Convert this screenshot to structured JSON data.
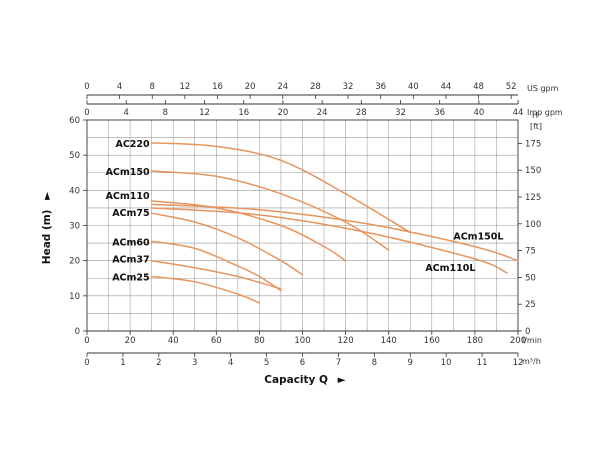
{
  "chart_data": {
    "type": "line",
    "title": "",
    "ylabel": "Head (m)",
    "ylabel_arrow": "►",
    "xlabel": "Capacity Q",
    "xlabel_arrow": "►",
    "xlim": [
      0,
      200
    ],
    "ylim": [
      0,
      60
    ],
    "grid": true,
    "line_color": "#e8955c",
    "x_unit": "l/min",
    "y_unit": "",
    "axes": {
      "x_lmin": {
        "unit": "l/min",
        "ticks": [
          0,
          20,
          40,
          60,
          80,
          100,
          120,
          140,
          160,
          180,
          200
        ],
        "labels": [
          "0",
          "20",
          "40",
          "60",
          "80",
          "100",
          "120",
          "140",
          "160",
          "180",
          "200"
        ]
      },
      "x_m3h": {
        "unit": "m³/h",
        "ticks": [
          0,
          1,
          2,
          3,
          4,
          5,
          6,
          7,
          8,
          9,
          10,
          11,
          12
        ],
        "labels": [
          "0",
          "1",
          "2",
          "3",
          "4",
          "5",
          "6",
          "7",
          "8",
          "9",
          "10",
          "11",
          "12"
        ]
      },
      "x_usgpm": {
        "unit": "US gpm",
        "ticks": [
          0,
          4,
          8,
          12,
          16,
          20,
          24,
          28,
          32,
          36,
          40,
          44,
          48,
          52
        ],
        "labels": [
          "0",
          "4",
          "8",
          "12",
          "16",
          "20",
          "24",
          "28",
          "32",
          "36",
          "40",
          "44",
          "48",
          "52"
        ]
      },
      "x_impgpm": {
        "unit": "Imp gpm",
        "ticks": [
          0,
          4,
          8,
          12,
          16,
          20,
          24,
          28,
          32,
          36,
          40,
          44
        ],
        "labels": [
          "0",
          "4",
          "8",
          "12",
          "16",
          "20",
          "24",
          "28",
          "32",
          "36",
          "40",
          "44"
        ]
      },
      "y_m": {
        "ticks": [
          0,
          10,
          20,
          30,
          40,
          50,
          60
        ],
        "labels": [
          "0",
          "10",
          "20",
          "30",
          "40",
          "50",
          "60"
        ]
      },
      "y_ft": {
        "unit_top": "H",
        "unit": "[ft]",
        "ticks": [
          0,
          25,
          50,
          75,
          100,
          125,
          150,
          175
        ],
        "labels": [
          "0",
          "25",
          "50",
          "75",
          "100",
          "125",
          "150",
          "175"
        ]
      }
    },
    "series": [
      {
        "name": "AC220",
        "x": [
          30,
          60,
          90,
          120,
          150
        ],
        "y": [
          53.5,
          52.5,
          48.5,
          39,
          28
        ]
      },
      {
        "name": "ACm150",
        "x": [
          30,
          60,
          90,
          120,
          140
        ],
        "y": [
          45.5,
          44,
          39,
          31,
          23
        ]
      },
      {
        "name": "ACm110",
        "x": [
          30,
          60,
          90,
          110,
          120
        ],
        "y": [
          37,
          35,
          30,
          24,
          20
        ]
      },
      {
        "name": "ACm75",
        "x": [
          30,
          50,
          70,
          90,
          100
        ],
        "y": [
          33.5,
          31,
          26.5,
          20,
          16
        ]
      },
      {
        "name": "ACm60",
        "x": [
          30,
          50,
          70,
          80,
          90
        ],
        "y": [
          25.5,
          23.5,
          18.5,
          15.5,
          11.5
        ]
      },
      {
        "name": "ACm37",
        "x": [
          30,
          50,
          70,
          90
        ],
        "y": [
          20,
          18,
          15.5,
          12
        ]
      },
      {
        "name": "ACm25",
        "x": [
          30,
          50,
          70,
          80
        ],
        "y": [
          15.5,
          14,
          10.5,
          8
        ]
      },
      {
        "name": "ACm150L",
        "x": [
          30,
          80,
          130,
          180,
          200
        ],
        "y": [
          36,
          34.5,
          30.5,
          24,
          20
        ]
      },
      {
        "name": "ACm110L",
        "x": [
          30,
          80,
          130,
          180,
          195
        ],
        "y": [
          35,
          33,
          28,
          20.5,
          16.5
        ]
      }
    ]
  }
}
